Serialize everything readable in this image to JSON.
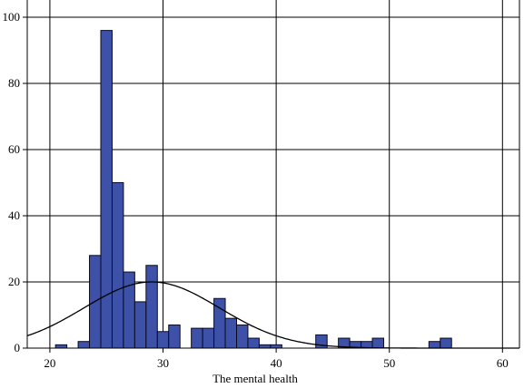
{
  "chart_data": {
    "type": "bar",
    "xlabel": "The mental health",
    "ylabel": "",
    "xlim": [
      18,
      61.5
    ],
    "ylim": [
      0,
      100
    ],
    "x_ticks": [
      20,
      30,
      40,
      50,
      60
    ],
    "y_ticks": [
      0,
      20,
      40,
      60,
      80,
      100
    ],
    "grid": true,
    "bin_width": 1,
    "bins": [
      {
        "x": 21,
        "count": 1
      },
      {
        "x": 23,
        "count": 2
      },
      {
        "x": 24,
        "count": 28
      },
      {
        "x": 25,
        "count": 96
      },
      {
        "x": 26,
        "count": 50
      },
      {
        "x": 27,
        "count": 23
      },
      {
        "x": 28,
        "count": 14
      },
      {
        "x": 29,
        "count": 25
      },
      {
        "x": 30,
        "count": 5
      },
      {
        "x": 31,
        "count": 7
      },
      {
        "x": 33,
        "count": 6
      },
      {
        "x": 34,
        "count": 6
      },
      {
        "x": 35,
        "count": 15
      },
      {
        "x": 36,
        "count": 9
      },
      {
        "x": 37,
        "count": 7
      },
      {
        "x": 38,
        "count": 3
      },
      {
        "x": 39,
        "count": 1
      },
      {
        "x": 40,
        "count": 1
      },
      {
        "x": 44,
        "count": 4
      },
      {
        "x": 46,
        "count": 3
      },
      {
        "x": 47,
        "count": 2
      },
      {
        "x": 48,
        "count": 2
      },
      {
        "x": 49,
        "count": 3
      },
      {
        "x": 54,
        "count": 2
      },
      {
        "x": 55,
        "count": 3
      }
    ],
    "normal_curve": {
      "mean": 29.0,
      "sd": 6.0,
      "peak": 20
    },
    "colors": {
      "bar_fill": "#3d51a8",
      "bar_stroke": "#0a0a20",
      "curve": "#000000"
    }
  }
}
